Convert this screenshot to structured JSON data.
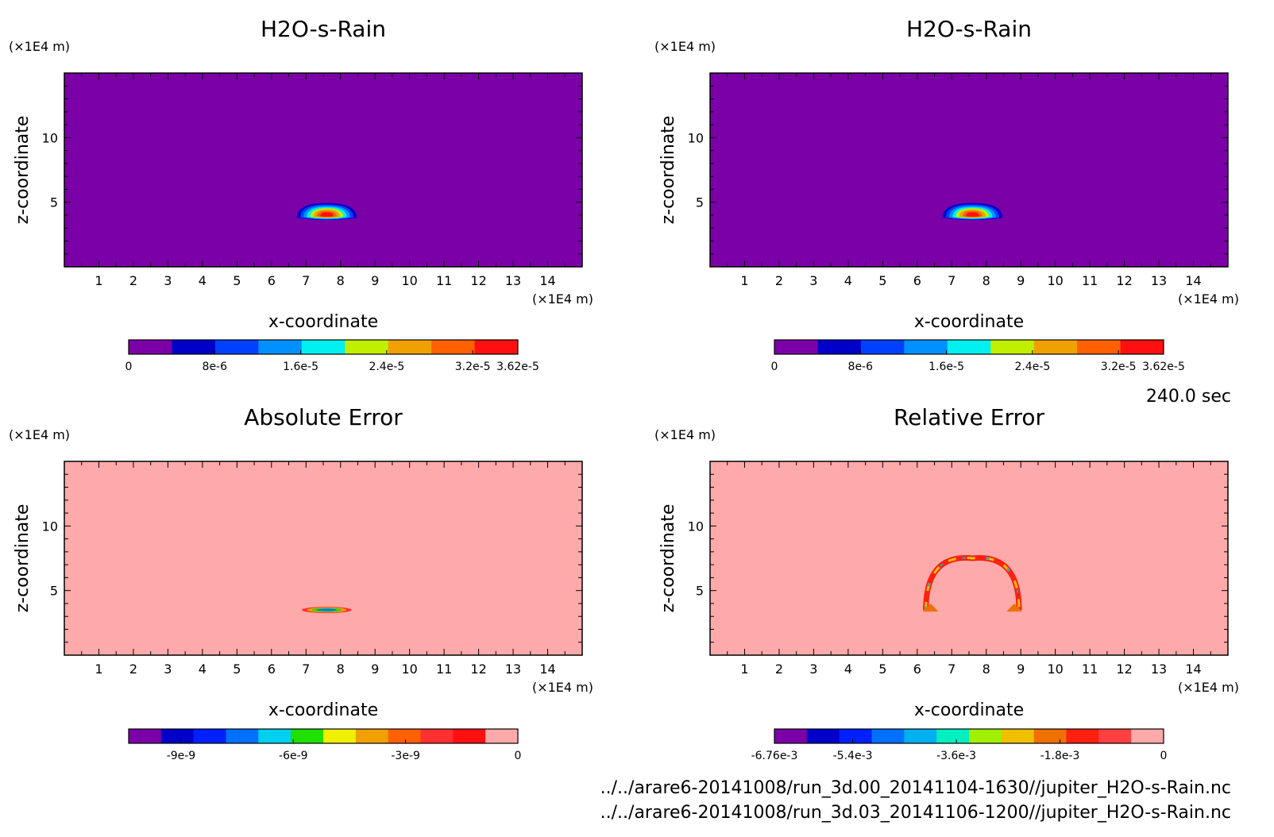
{
  "time_label": "240.0 sec",
  "files": [
    "../../arare6-20141008/run_3d.00_20141104-1630//jupiter_H2O-s-Rain.nc",
    "../../arare6-20141008/run_3d.03_20141106-1200//jupiter_H2O-s-Rain.nc"
  ],
  "chart_data": [
    {
      "type": "heatmap",
      "title": "H2O-s-Rain",
      "xlabel": "x-coordinate",
      "ylabel": "z-coordinate",
      "x_unit": "(×1E4 m)",
      "y_unit": "(×1E4 m)",
      "xlim": [
        0,
        15
      ],
      "ylim": [
        0,
        15
      ],
      "x_ticks": [
        "1",
        "2",
        "3",
        "4",
        "5",
        "6",
        "7",
        "8",
        "9",
        "10",
        "11",
        "12",
        "13",
        "14"
      ],
      "y_ticks": [
        "5",
        "10"
      ],
      "background_color": "#7c00a8",
      "feature": "blob",
      "feature_center": [
        7.6,
        4.0
      ],
      "colorbar": {
        "colors": [
          "#7c00a8",
          "#0000c8",
          "#0040ff",
          "#0090ff",
          "#00f0f0",
          "#c0f000",
          "#f0a000",
          "#ff6000",
          "#ff1010"
        ],
        "tick_labels": [
          "0",
          "8e-6",
          "1.6e-5",
          "2.4e-5",
          "3.2e-5",
          "3.62e-5"
        ],
        "tick_values": [
          0,
          8e-06,
          1.6e-05,
          2.4e-05,
          3.2e-05,
          3.62e-05
        ],
        "range": [
          0,
          3.62e-05
        ]
      }
    },
    {
      "type": "heatmap",
      "title": "H2O-s-Rain",
      "xlabel": "x-coordinate",
      "ylabel": "z-coordinate",
      "x_unit": "(×1E4 m)",
      "y_unit": "(×1E4 m)",
      "xlim": [
        0,
        15
      ],
      "ylim": [
        0,
        15
      ],
      "x_ticks": [
        "1",
        "2",
        "3",
        "4",
        "5",
        "6",
        "7",
        "8",
        "9",
        "10",
        "11",
        "12",
        "13",
        "14"
      ],
      "y_ticks": [
        "5",
        "10"
      ],
      "background_color": "#7c00a8",
      "feature": "blob",
      "feature_center": [
        7.6,
        4.0
      ],
      "colorbar": {
        "colors": [
          "#7c00a8",
          "#0000c8",
          "#0040ff",
          "#0090ff",
          "#00f0f0",
          "#c0f000",
          "#f0a000",
          "#ff6000",
          "#ff1010"
        ],
        "tick_labels": [
          "0",
          "8e-6",
          "1.6e-5",
          "2.4e-5",
          "3.2e-5",
          "3.62e-5"
        ],
        "tick_values": [
          0,
          8e-06,
          1.6e-05,
          2.4e-05,
          3.2e-05,
          3.62e-05
        ],
        "range": [
          0,
          3.62e-05
        ]
      }
    },
    {
      "type": "heatmap",
      "title": "Absolute Error",
      "xlabel": "x-coordinate",
      "ylabel": "z-coordinate",
      "x_unit": "(×1E4 m)",
      "y_unit": "(×1E4 m)",
      "xlim": [
        0,
        15
      ],
      "ylim": [
        0,
        15
      ],
      "x_ticks": [
        "1",
        "2",
        "3",
        "4",
        "5",
        "6",
        "7",
        "8",
        "9",
        "10",
        "11",
        "12",
        "13",
        "14"
      ],
      "y_ticks": [
        "5",
        "10"
      ],
      "background_color": "#ffaaaa",
      "feature": "stripe",
      "feature_center": [
        7.6,
        3.5
      ],
      "colorbar": {
        "colors": [
          "#7c00a8",
          "#0000c8",
          "#0020ff",
          "#0070ff",
          "#00d0f0",
          "#20e000",
          "#f0f000",
          "#f0a000",
          "#ff6000",
          "#ff3030",
          "#ff1010",
          "#ffaaaa"
        ],
        "tick_labels": [
          "-9e-9",
          "-6e-9",
          "-3e-9",
          "0"
        ],
        "tick_values": [
          -9e-09,
          -6e-09,
          -3e-09,
          0
        ],
        "range": [
          -1.04e-08,
          0
        ]
      }
    },
    {
      "type": "heatmap",
      "title": "Relative Error",
      "xlabel": "x-coordinate",
      "ylabel": "z-coordinate",
      "x_unit": "(×1E4 m)",
      "y_unit": "(×1E4 m)",
      "xlim": [
        0,
        15
      ],
      "ylim": [
        0,
        15
      ],
      "x_ticks": [
        "1",
        "2",
        "3",
        "4",
        "5",
        "6",
        "7",
        "8",
        "9",
        "10",
        "11",
        "12",
        "13",
        "14"
      ],
      "y_ticks": [
        "5",
        "10"
      ],
      "background_color": "#ffaaaa",
      "feature": "arch",
      "feature_center": [
        7.6,
        5.5
      ],
      "colorbar": {
        "colors": [
          "#7c00a8",
          "#0000c8",
          "#0020ff",
          "#0070ff",
          "#00b0f0",
          "#00f0c0",
          "#a0f000",
          "#f0c000",
          "#f07000",
          "#ff2010",
          "#ff4040",
          "#ffaaaa"
        ],
        "tick_labels": [
          "-6.76e-3",
          "-5.4e-3",
          "-3.6e-3",
          "-1.8e-3",
          "0"
        ],
        "tick_values": [
          -0.00676,
          -0.0054,
          -0.0036,
          -0.0018,
          0
        ],
        "range": [
          -0.00676,
          0
        ]
      }
    }
  ]
}
